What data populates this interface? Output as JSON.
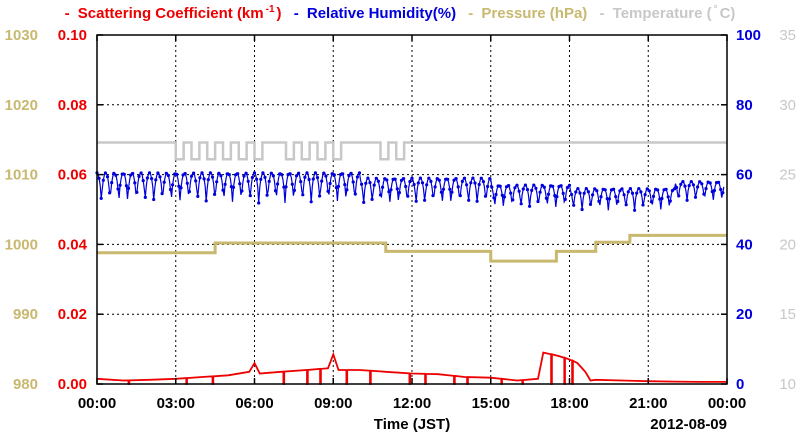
{
  "chart_data": {
    "type": "line",
    "xlabel": "Time (JST)",
    "date_label": "2012-08-09",
    "x_ticks": [
      "00:00",
      "03:00",
      "06:00",
      "09:00",
      "12:00",
      "15:00",
      "18:00",
      "21:00",
      "00:00"
    ],
    "x_range_hours": [
      0,
      24
    ],
    "grid": true,
    "axes": {
      "pressure": {
        "ticks": [
          "980",
          "990",
          "1000",
          "1010",
          "1020",
          "1030"
        ],
        "range": [
          980,
          1030
        ],
        "color": "#c8b870"
      },
      "scattering": {
        "ticks": [
          "0.00",
          "0.02",
          "0.04",
          "0.06",
          "0.08",
          "0.10"
        ],
        "range": [
          0,
          0.1
        ],
        "color": "#ee0000"
      },
      "humidity": {
        "ticks": [
          "0",
          "20",
          "40",
          "60",
          "80",
          "100"
        ],
        "range": [
          0,
          100
        ],
        "color": "#0000dd"
      },
      "temperature": {
        "ticks": [
          "10",
          "15",
          "20",
          "25",
          "30",
          "35"
        ],
        "range": [
          10,
          35
        ],
        "color": "#c8c8c8"
      }
    },
    "legend": [
      {
        "prefix": "- ",
        "label": "Scattering Coefficient (km",
        "sup": "-1",
        "suffix": ")",
        "color": "#ee0000"
      },
      {
        "prefix": "- ",
        "label": "Relative Humidity(%)",
        "sup": "",
        "suffix": "",
        "color": "#0000dd"
      },
      {
        "prefix": "- ",
        "label": "Pressure (hPa)",
        "sup": "",
        "suffix": "",
        "color": "#c8b870"
      },
      {
        "prefix": "- ",
        "label": "Temperature (",
        "sup": "°",
        "suffix": "C)",
        "color": "#c8c8c8"
      }
    ],
    "series": [
      {
        "name": "Pressure (hPa)",
        "axis": "pressure",
        "step_points": [
          [
            0,
            998.8
          ],
          [
            4.5,
            998.8
          ],
          [
            4.5,
            1000.2
          ],
          [
            11,
            1000.2
          ],
          [
            11,
            999
          ],
          [
            15,
            999
          ],
          [
            15,
            997.6
          ],
          [
            17.5,
            997.6
          ],
          [
            17.5,
            999
          ],
          [
            19,
            999
          ],
          [
            19,
            1000.3
          ],
          [
            20.3,
            1000.3
          ],
          [
            20.3,
            1001.3
          ],
          [
            24,
            1001.3
          ]
        ]
      },
      {
        "name": "Temperature (C)",
        "axis": "temperature",
        "base": 27.3,
        "low": 26.1,
        "dips": [
          [
            3.0,
            3.3
          ],
          [
            3.6,
            3.9
          ],
          [
            4.2,
            4.5
          ],
          [
            4.8,
            5.1
          ],
          [
            5.4,
            5.7
          ],
          [
            6.0,
            6.3
          ],
          [
            7.2,
            7.5
          ],
          [
            7.8,
            8.1
          ],
          [
            8.4,
            8.7
          ],
          [
            9.0,
            9.3
          ],
          [
            10.8,
            11.1
          ],
          [
            11.4,
            11.7
          ]
        ]
      },
      {
        "name": "Relative Humidity(%)",
        "axis": "humidity",
        "period_hours": 0.333,
        "segments": [
          {
            "from": 0,
            "to": 10,
            "high": 60.5,
            "low": 51.5
          },
          {
            "from": 10,
            "to": 15,
            "high": 59,
            "low": 51
          },
          {
            "from": 15,
            "to": 18,
            "high": 57,
            "low": 50
          },
          {
            "from": 18,
            "to": 22,
            "high": 56,
            "low": 49.5
          },
          {
            "from": 22,
            "to": 24,
            "high": 58,
            "low": 52
          }
        ]
      },
      {
        "name": "Scattering Coefficient (km-1)",
        "axis": "scattering",
        "points": [
          [
            0,
            0.0015
          ],
          [
            1,
            0.001
          ],
          [
            2,
            0.0012
          ],
          [
            3,
            0.0015
          ],
          [
            4,
            0.002
          ],
          [
            5,
            0.0025
          ],
          [
            5.8,
            0.0035
          ],
          [
            6,
            0.006
          ],
          [
            6.2,
            0.003
          ],
          [
            7,
            0.0035
          ],
          [
            8,
            0.004
          ],
          [
            8.8,
            0.0045
          ],
          [
            9.0,
            0.0085
          ],
          [
            9.2,
            0.004
          ],
          [
            10,
            0.004
          ],
          [
            11,
            0.0035
          ],
          [
            12,
            0.003
          ],
          [
            13,
            0.0028
          ],
          [
            14,
            0.002
          ],
          [
            15,
            0.0018
          ],
          [
            16,
            0.001
          ],
          [
            16.8,
            0.0015
          ],
          [
            17.0,
            0.009
          ],
          [
            17.3,
            0.0085
          ],
          [
            17.6,
            0.008
          ],
          [
            18.0,
            0.007
          ],
          [
            18.3,
            0.006
          ],
          [
            18.6,
            0.0035
          ],
          [
            18.8,
            0.001
          ],
          [
            19,
            0.0012
          ],
          [
            20,
            0.001
          ],
          [
            21,
            0.0008
          ],
          [
            22,
            0.0007
          ],
          [
            23,
            0.0006
          ],
          [
            24,
            0.0006
          ]
        ],
        "dips": [
          1.2,
          3.4,
          4.4,
          7.1,
          8.0,
          8.5,
          9.5,
          10.4,
          11.9,
          12.5,
          13.6,
          14.1,
          15.4,
          16.2,
          17.3,
          17.8,
          18.1
        ]
      }
    ]
  }
}
